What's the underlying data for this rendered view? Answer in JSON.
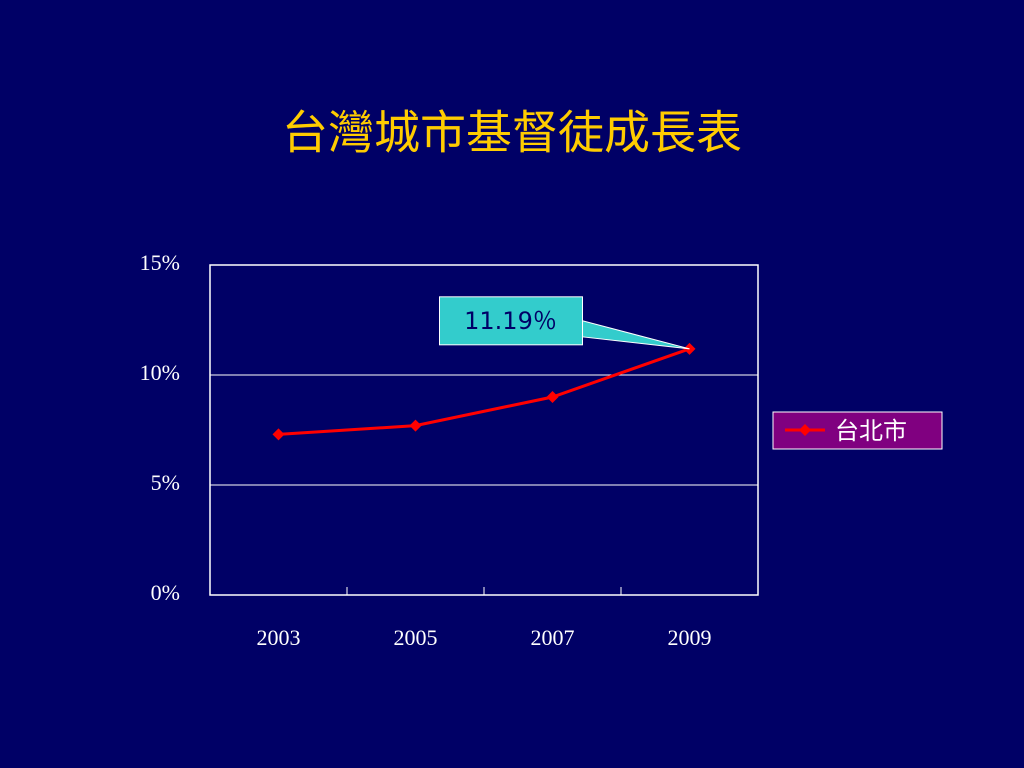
{
  "chart_data": {
    "type": "line",
    "title": "台灣城市基督徒成長表",
    "categories": [
      "2003",
      "2005",
      "2007",
      "2009"
    ],
    "series": [
      {
        "name": "台北市",
        "color": "#ff0000",
        "values": [
          7.3,
          7.7,
          9.0,
          11.19
        ],
        "value_labels": [
          null,
          null,
          null,
          "11.19％"
        ]
      }
    ],
    "ylim": [
      0,
      15
    ],
    "yticks": [
      {
        "value": 0,
        "label": "0%"
      },
      {
        "value": 5,
        "label": "5%"
      },
      {
        "value": 10,
        "label": "10%"
      },
      {
        "value": 15,
        "label": "15%"
      }
    ],
    "grid": true,
    "legend": "right"
  }
}
